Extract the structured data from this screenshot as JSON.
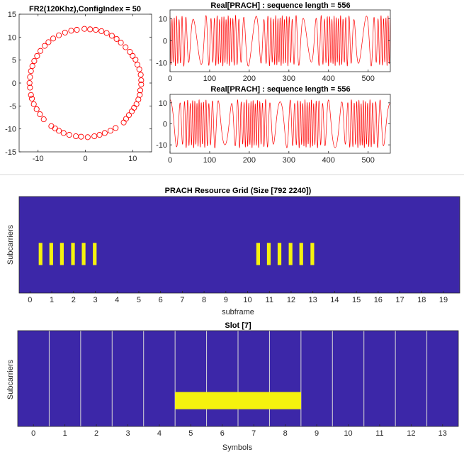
{
  "colors": {
    "axis": "#262626",
    "series": "#ff0000",
    "grid_bg": "#3c27a8",
    "grid_on": "#f5f20e",
    "divider": "#d7d7d7"
  },
  "chart_data": [
    {
      "id": "constellation",
      "type": "scatter",
      "title": "FR2(120Khz),ConfigIndex = 50",
      "xlim": [
        -14,
        14
      ],
      "ylim": [
        -15,
        15
      ],
      "xticks": [
        "-10",
        "0",
        "10"
      ],
      "xtick_values": [
        -10,
        0,
        10
      ],
      "yticks": [
        "15",
        "10",
        "5",
        "0",
        "-5",
        "-10",
        "-15"
      ],
      "ytick_values": [
        15,
        10,
        5,
        0,
        -5,
        -10,
        -15
      ],
      "marker": "circle-open",
      "radius": 11.8,
      "points": [
        [
          1.0,
          11.7
        ],
        [
          2.2,
          11.6
        ],
        [
          3.4,
          11.3
        ],
        [
          4.5,
          10.9
        ],
        [
          5.6,
          10.3
        ],
        [
          6.6,
          9.6
        ],
        [
          7.5,
          8.8
        ],
        [
          8.5,
          7.8
        ],
        [
          9.4,
          6.8
        ],
        [
          10.0,
          5.9
        ],
        [
          10.6,
          5.1
        ],
        [
          11.0,
          4.0
        ],
        [
          11.4,
          3.0
        ],
        [
          11.7,
          1.8
        ],
        [
          11.8,
          0.6
        ],
        [
          11.8,
          -0.3
        ],
        [
          11.6,
          -1.6
        ],
        [
          11.5,
          -2.6
        ],
        [
          11.2,
          -3.6
        ],
        [
          10.8,
          -4.6
        ],
        [
          10.3,
          -5.4
        ],
        [
          9.8,
          -6.2
        ],
        [
          9.2,
          -7.0
        ],
        [
          8.6,
          -7.8
        ],
        [
          8.1,
          -8.6
        ],
        [
          6.4,
          -9.8
        ],
        [
          5.3,
          -10.4
        ],
        [
          4.1,
          -10.9
        ],
        [
          3.0,
          -11.3
        ],
        [
          1.9,
          -11.6
        ],
        [
          0.5,
          -11.8
        ],
        [
          -0.9,
          -11.7
        ],
        [
          -2.0,
          -11.6
        ],
        [
          -3.4,
          -11.3
        ],
        [
          -4.6,
          -10.9
        ],
        [
          -5.6,
          -10.4
        ],
        [
          -6.4,
          -9.9
        ],
        [
          -7.2,
          -9.4
        ],
        [
          -8.8,
          -7.9
        ],
        [
          -9.6,
          -6.8
        ],
        [
          -10.3,
          -5.7
        ],
        [
          -10.9,
          -4.6
        ],
        [
          -11.3,
          -3.4
        ],
        [
          -11.5,
          -2.6
        ],
        [
          -11.7,
          -1.0
        ],
        [
          -11.8,
          0.0
        ],
        [
          -11.7,
          1.3
        ],
        [
          -11.5,
          2.6
        ],
        [
          -11.2,
          3.7
        ],
        [
          -10.8,
          4.8
        ],
        [
          -10.2,
          5.9
        ],
        [
          -9.5,
          7.0
        ],
        [
          -8.6,
          8.1
        ],
        [
          -7.8,
          8.9
        ],
        [
          -6.8,
          9.7
        ],
        [
          -5.6,
          10.4
        ],
        [
          -4.3,
          11.0
        ],
        [
          -3.0,
          11.4
        ],
        [
          -1.8,
          11.6
        ],
        [
          -0.2,
          11.8
        ]
      ]
    },
    {
      "id": "seq1",
      "type": "line",
      "title": "Real[PRACH] : sequence length = 556",
      "xlim": [
        0,
        556
      ],
      "ylim": [
        -14,
        14
      ],
      "xticks": [
        "0",
        "100",
        "200",
        "300",
        "400",
        "500"
      ],
      "xtick_values": [
        0,
        100,
        200,
        300,
        400,
        500
      ],
      "yticks": [
        "10",
        "0",
        "-10"
      ],
      "ytick_values": [
        10,
        0,
        -10
      ],
      "amplitude": 11.5,
      "cycles_center": 3,
      "cycles_edge": 26
    },
    {
      "id": "seq2",
      "type": "line",
      "title": "Real[PRACH] : sequence length = 556",
      "xlim": [
        0,
        556
      ],
      "ylim": [
        -14,
        14
      ],
      "xticks": [
        "0",
        "100",
        "200",
        "300",
        "400",
        "500"
      ],
      "xtick_values": [
        0,
        100,
        200,
        300,
        400,
        500
      ],
      "yticks": [
        "10",
        "0",
        "-10"
      ],
      "ytick_values": [
        10,
        0,
        -10
      ],
      "amplitude": 11.5,
      "cycles_center": 26,
      "cycles_edge": 3
    },
    {
      "id": "resource-grid",
      "type": "heatmap",
      "title": "PRACH Resource Grid (Size [792 2240])",
      "xlabel": "subframe",
      "ylabel": "Subcarriers",
      "xlim": [
        -0.5,
        19.75
      ],
      "ylim": [
        0,
        1
      ],
      "xticks": [
        "0",
        "1",
        "2",
        "3",
        "4",
        "5",
        "6",
        "7",
        "8",
        "9",
        "10",
        "11",
        "12",
        "13",
        "14",
        "15",
        "16",
        "17",
        "18",
        "19"
      ],
      "xtick_values": [
        0,
        1,
        2,
        3,
        4,
        5,
        6,
        7,
        8,
        9,
        10,
        11,
        12,
        13,
        14,
        15,
        16,
        17,
        18,
        19
      ],
      "active_y_range": [
        0.29,
        0.52
      ],
      "active_bars_x": [
        [
          0.4,
          0.57
        ],
        [
          0.89,
          1.06
        ],
        [
          1.38,
          1.55
        ],
        [
          1.89,
          2.06
        ],
        [
          2.38,
          2.55
        ],
        [
          2.89,
          3.06
        ],
        [
          10.4,
          10.57
        ],
        [
          10.89,
          11.06
        ],
        [
          11.38,
          11.55
        ],
        [
          11.89,
          12.06
        ],
        [
          12.38,
          12.55
        ],
        [
          12.89,
          13.06
        ]
      ]
    },
    {
      "id": "slot",
      "type": "heatmap",
      "title": "Slot [7]",
      "xlabel": "Symbols",
      "ylabel": "Subcarriers",
      "xlim": [
        -0.5,
        13.5
      ],
      "ylim": [
        0,
        1
      ],
      "xticks": [
        "0",
        "1",
        "2",
        "3",
        "4",
        "5",
        "6",
        "7",
        "8",
        "9",
        "10",
        "11",
        "12",
        "13"
      ],
      "xtick_values": [
        0,
        1,
        2,
        3,
        4,
        5,
        6,
        7,
        8,
        9,
        10,
        11,
        12,
        13
      ],
      "symbol_boundaries": [
        0.5,
        1.5,
        2.5,
        3.5,
        4.5,
        5.5,
        6.5,
        7.5,
        8.5,
        9.5,
        10.5,
        11.5,
        12.5
      ],
      "active_x_range": [
        4.5,
        8.5
      ],
      "active_y_range": [
        0.18,
        0.36
      ]
    }
  ]
}
